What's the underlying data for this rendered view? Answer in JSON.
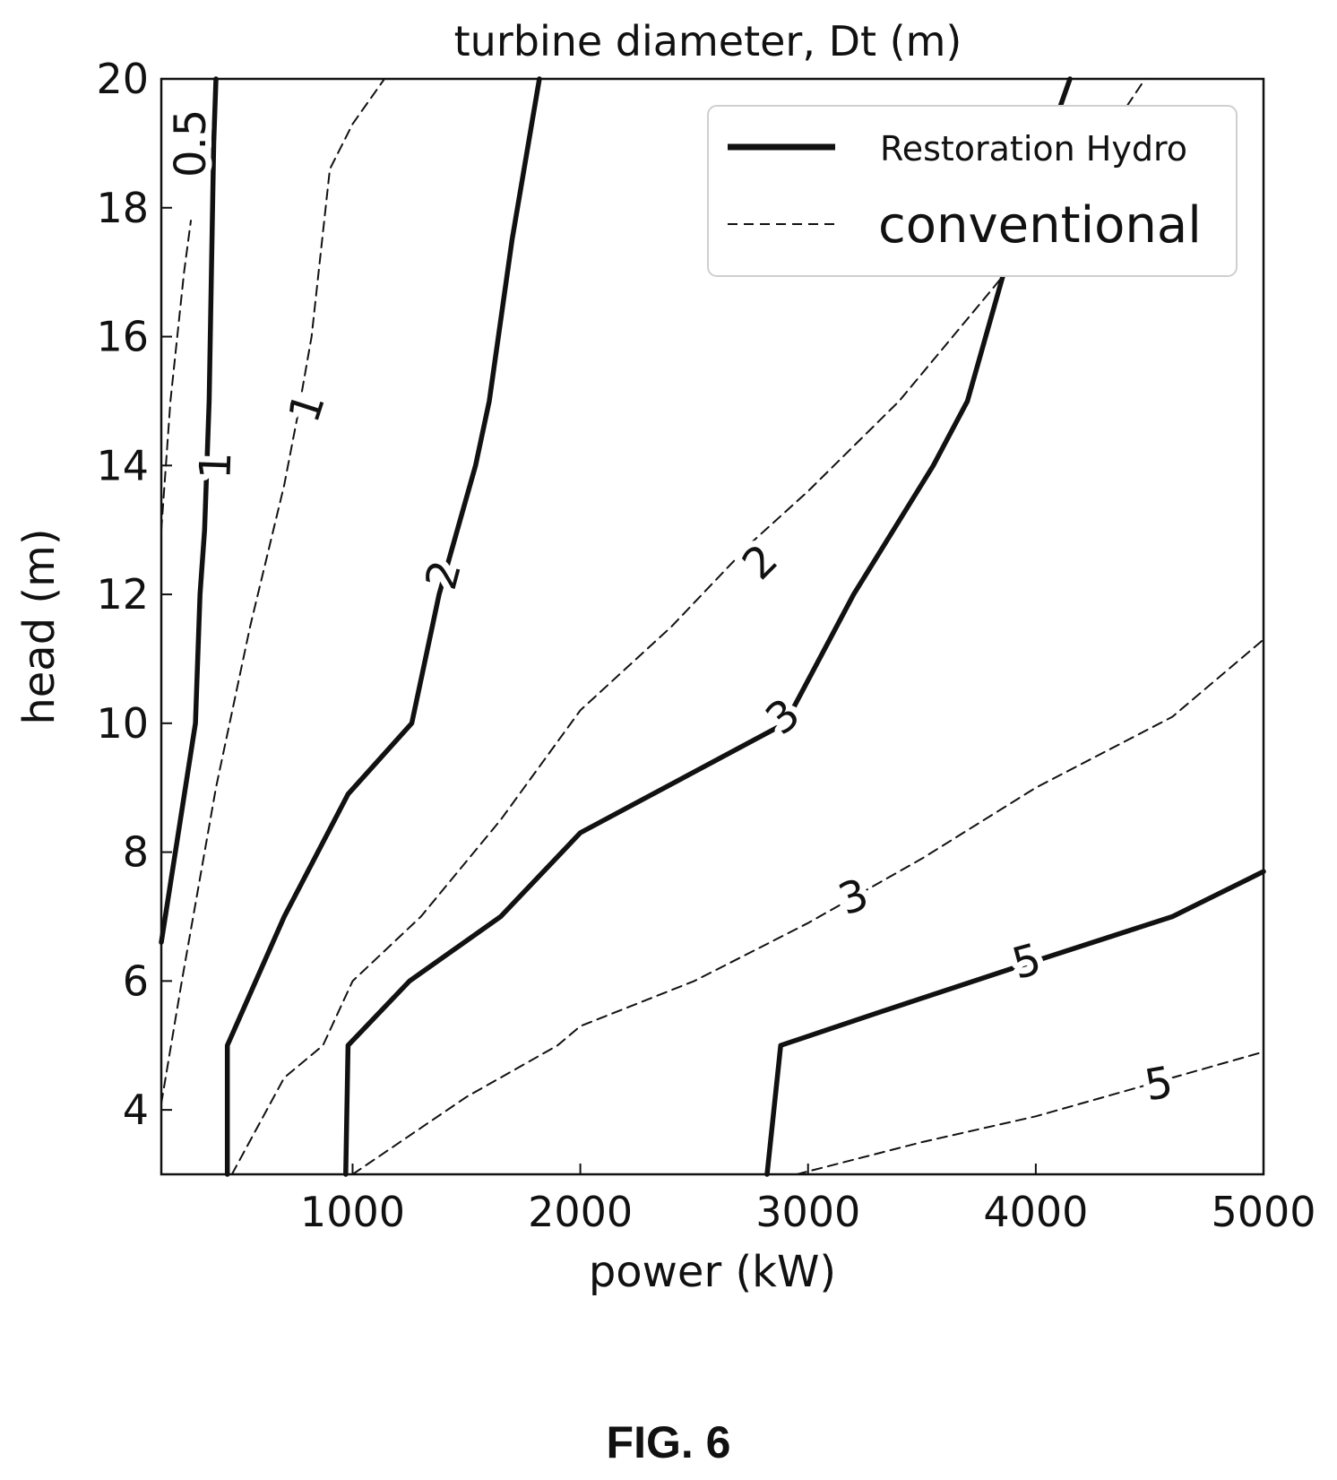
{
  "figure_caption": "FIG. 6",
  "chart_data": {
    "type": "line",
    "title": "turbine diameter, Dt (m)",
    "xlabel": "power (kW)",
    "ylabel": "head (m)",
    "xlim": [
      160,
      5000
    ],
    "ylim": [
      3,
      20
    ],
    "xticks": [
      1000,
      2000,
      3000,
      4000,
      5000
    ],
    "yticks": [
      4,
      6,
      8,
      10,
      12,
      14,
      16,
      18,
      20
    ],
    "grid": false,
    "legend": {
      "placement": "top-right",
      "entries": [
        {
          "label": "Restoration Hydro",
          "style": "solid"
        },
        {
          "label": "conventional",
          "style": "dashed"
        }
      ]
    },
    "series": [
      {
        "group": "Restoration Hydro",
        "level": "1",
        "style": "solid",
        "x": [
          160,
          310,
          330,
          350,
          370,
          385,
          390,
          400
        ],
        "y": [
          6.6,
          10,
          12,
          13,
          15,
          18,
          19,
          20
        ]
      },
      {
        "group": "Restoration Hydro",
        "level": "2",
        "style": "solid",
        "x": [
          450,
          450,
          700,
          980,
          1260,
          1380,
          1540,
          1600,
          1700,
          1820
        ],
        "y": [
          3,
          5,
          7,
          8.9,
          10,
          12,
          14,
          15,
          17.5,
          20
        ]
      },
      {
        "group": "Restoration Hydro",
        "level": "3",
        "style": "solid",
        "x": [
          970,
          980,
          1250,
          1650,
          2000,
          2900,
          3200,
          3550,
          3700,
          3900,
          4050,
          4150
        ],
        "y": [
          3,
          5,
          6,
          7,
          8.3,
          10,
          12,
          14,
          15,
          17.5,
          19,
          20
        ]
      },
      {
        "group": "Restoration Hydro",
        "level": "5",
        "style": "solid",
        "x": [
          2820,
          2880,
          3300,
          3900,
          4600,
          5000
        ],
        "y": [
          3,
          5,
          5.5,
          6.2,
          7,
          7.7
        ]
      },
      {
        "group": "conventional",
        "level": "0.5",
        "style": "dashed",
        "x": [
          160,
          180,
          200,
          230,
          260,
          290
        ],
        "y": [
          13,
          14,
          15,
          16,
          17,
          17.8
        ]
      },
      {
        "group": "conventional",
        "level": "1",
        "style": "dashed",
        "x": [
          160,
          250,
          400,
          550,
          700,
          760,
          820,
          900,
          1000,
          1140
        ],
        "y": [
          4.1,
          6,
          9,
          11.5,
          13.7,
          14.8,
          16,
          18.6,
          19.3,
          20
        ]
      },
      {
        "group": "conventional",
        "level": "2",
        "style": "dashed",
        "x": [
          470,
          700,
          870,
          1000,
          1300,
          1650,
          2000,
          2400,
          2750,
          3000,
          3400,
          3800,
          4100,
          4480
        ],
        "y": [
          3,
          4.5,
          5,
          6,
          7,
          8.5,
          10.2,
          11.5,
          12.8,
          13.6,
          15,
          16.7,
          18,
          20
        ]
      },
      {
        "group": "conventional",
        "level": "3",
        "style": "dashed",
        "x": [
          1000,
          1500,
          1900,
          2000,
          2500,
          3000,
          3500,
          4000,
          4600,
          5000
        ],
        "y": [
          3,
          4.2,
          5,
          5.3,
          6,
          6.9,
          7.9,
          9,
          10.1,
          11.3
        ]
      },
      {
        "group": "conventional",
        "level": "5",
        "style": "dashed",
        "x": [
          2950,
          3500,
          4000,
          4500,
          5000
        ],
        "y": [
          3,
          3.5,
          3.9,
          4.4,
          4.9
        ]
      }
    ],
    "contour_labels": [
      {
        "text": "0.5",
        "x": 290,
        "y": 19.0,
        "angle": -90
      },
      {
        "text": "1",
        "x": 400,
        "y": 14.0,
        "angle": -88
      },
      {
        "text": "1",
        "x": 800,
        "y": 14.9,
        "angle": -72
      },
      {
        "text": "2",
        "x": 1400,
        "y": 12.3,
        "angle": -75
      },
      {
        "text": "2",
        "x": 2790,
        "y": 12.5,
        "angle": -45
      },
      {
        "text": "3",
        "x": 2890,
        "y": 10.1,
        "angle": -40
      },
      {
        "text": "3",
        "x": 3200,
        "y": 7.3,
        "angle": -20
      },
      {
        "text": "5",
        "x": 3960,
        "y": 6.3,
        "angle": -15
      },
      {
        "text": "5",
        "x": 4540,
        "y": 4.4,
        "angle": -10
      }
    ]
  }
}
